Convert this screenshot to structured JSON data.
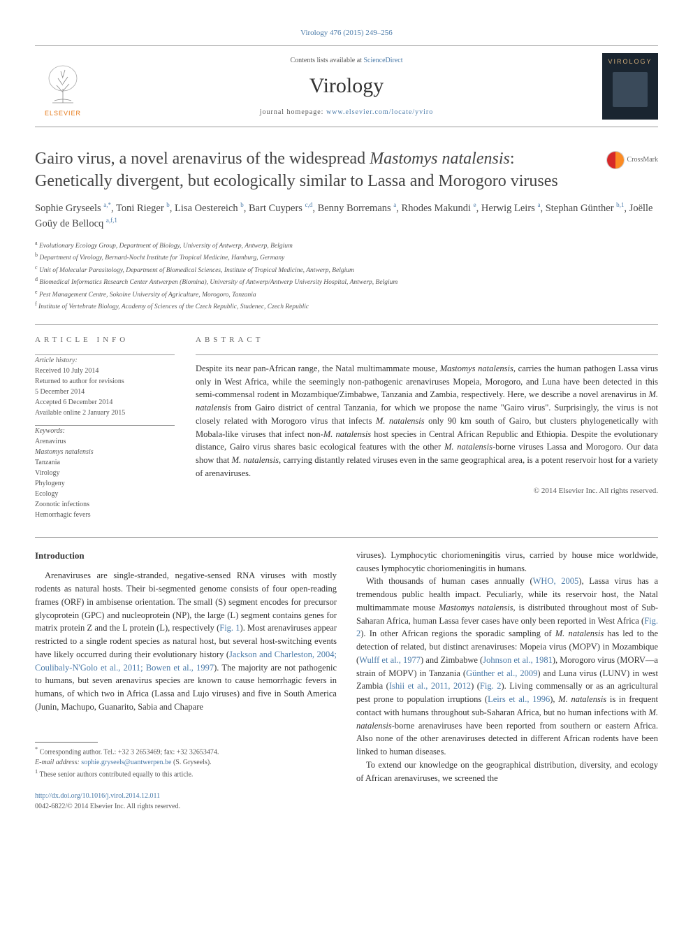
{
  "journal_ref": "Virology 476 (2015) 249–256",
  "header": {
    "contents_prefix": "Contents lists available at ",
    "contents_link": "ScienceDirect",
    "journal_name": "Virology",
    "homepage_prefix": "journal homepage: ",
    "homepage_link": "www.elsevier.com/locate/yviro",
    "elsevier_label": "ELSEVIER",
    "cover_label": "VIROLOGY"
  },
  "crossmark_label": "CrossMark",
  "title_parts": {
    "p1": "Gairo virus, a novel arenavirus of the widespread ",
    "em1": "Mastomys natalensis",
    "p2": ": Genetically divergent, but ecologically similar to Lassa and Morogoro viruses"
  },
  "authors_html": "Sophie Gryseels|a,*|, Toni Rieger|b|, Lisa Oestereich|b|, Bart Cuypers|c,d|, Benny Borremans|a|, Rhodes Makundi|e|, Herwig Leirs|a|, Stephan Günther|b,1|, Joëlle Goüy de Bellocq|a,f,1|",
  "affiliations": [
    {
      "sup": "a",
      "text": " Evolutionary Ecology Group, Department of Biology, University of Antwerp, Antwerp, Belgium"
    },
    {
      "sup": "b",
      "text": " Department of Virology, Bernard-Nocht Institute for Tropical Medicine, Hamburg, Germany"
    },
    {
      "sup": "c",
      "text": " Unit of Molecular Parasitology, Department of Biomedical Sciences, Institute of Tropical Medicine, Antwerp, Belgium"
    },
    {
      "sup": "d",
      "text": " Biomedical Informatics Research Center Antwerpen (Biomina), University of Antwerp/Antwerp University Hospital, Antwerp, Belgium"
    },
    {
      "sup": "e",
      "text": " Pest Management Centre, Sokoine University of Agriculture, Morogoro, Tanzania"
    },
    {
      "sup": "f",
      "text": " Institute of Vertebrate Biology, Academy of Sciences of the Czech Republic, Studenec, Czech Republic"
    }
  ],
  "info": {
    "heading": "ARTICLE INFO",
    "history_label": "Article history:",
    "history": [
      "Received 10 July 2014",
      "Returned to author for revisions",
      "5 December 2014",
      "Accepted 6 December 2014",
      "Available online 2 January 2015"
    ],
    "keywords_label": "Keywords:",
    "keywords": [
      "Arenavirus",
      "Mastomys natalensis",
      "Tanzania",
      "Virology",
      "Phylogeny",
      "Ecology",
      "Zoonotic infections",
      "Hemorrhagic fevers"
    ]
  },
  "abstract": {
    "heading": "ABSTRACT",
    "text_parts": [
      {
        "t": "Despite its near pan-African range, the Natal multimammate mouse, "
      },
      {
        "em": "Mastomys natalensis"
      },
      {
        "t": ", carries the human pathogen Lassa virus only in West Africa, while the seemingly non-pathogenic arenaviruses Mopeia, Morogoro, and Luna have been detected in this semi-commensal rodent in Mozambique/Zimbabwe, Tanzania and Zambia, respectively. Here, we describe a novel arenavirus in "
      },
      {
        "em": "M. natalensis"
      },
      {
        "t": " from Gairo district of central Tanzania, for which we propose the name \"Gairo virus\". Surprisingly, the virus is not closely related with Morogoro virus that infects "
      },
      {
        "em": "M. natalensis"
      },
      {
        "t": " only 90 km south of Gairo, but clusters phylogenetically with Mobala-like viruses that infect non-"
      },
      {
        "em": "M. natalensis"
      },
      {
        "t": " host species in Central African Republic and Ethiopia. Despite the evolutionary distance, Gairo virus shares basic ecological features with the other "
      },
      {
        "em": "M. natalensis"
      },
      {
        "t": "-borne viruses Lassa and Morogoro. Our data show that "
      },
      {
        "em": "M. natalensis"
      },
      {
        "t": ", carrying distantly related viruses even in the same geographical area, is a potent reservoir host for a variety of arenaviruses."
      }
    ],
    "copyright": "© 2014 Elsevier Inc. All rights reserved."
  },
  "intro": {
    "heading": "Introduction",
    "col1": [
      {
        "t": "Arenaviruses are single-stranded, negative-sensed RNA viruses with mostly rodents as natural hosts. Their bi-segmented genome consists of four open-reading frames (ORF) in ambisense orientation. The small (S) segment encodes for precursor glycoprotein (GPC) and nucleoprotein (NP), the large (L) segment contains genes for matrix protein Z and the L protein (L), respectively ("
      },
      {
        "a": "Fig. 1"
      },
      {
        "t": "). Most arenaviruses appear restricted to a single rodent species as natural host, but several host-switching events have likely occurred during their evolutionary history ("
      },
      {
        "a": "Jackson and Charleston, 2004; Coulibaly-N'Golo et al., 2011; Bowen et al., 1997"
      },
      {
        "t": "). The majority are not pathogenic to humans, but seven arenavirus species are known to cause hemorrhagic fevers in humans, of which two in Africa (Lassa and Lujo viruses) and five in South America (Junin, Machupo, Guanarito, Sabia and Chapare "
      }
    ],
    "col2_top": "viruses). Lymphocytic choriomeningitis virus, carried by house mice worldwide, causes lymphocytic choriomeningitis in humans.",
    "col2_p2": [
      {
        "t": "With thousands of human cases annually ("
      },
      {
        "a": "WHO, 2005"
      },
      {
        "t": "), Lassa virus has a tremendous public health impact. Peculiarly, while its reservoir host, the Natal multimammate mouse "
      },
      {
        "em": "Mastomys natalensis"
      },
      {
        "t": ", is distributed throughout most of Sub-Saharan Africa, human Lassa fever cases have only been reported in West Africa ("
      },
      {
        "a": "Fig. 2"
      },
      {
        "t": "). In other African regions the sporadic sampling of "
      },
      {
        "em": "M. natalensis"
      },
      {
        "t": " has led to the detection of related, but distinct arenaviruses: Mopeia virus (MOPV) in Mozambique ("
      },
      {
        "a": "Wulff et al., 1977"
      },
      {
        "t": ") and Zimbabwe ("
      },
      {
        "a": "Johnson et al., 1981"
      },
      {
        "t": "), Morogoro virus (MORV—a strain of MOPV) in Tanzania ("
      },
      {
        "a": "Günther et al., 2009"
      },
      {
        "t": ") and Luna virus (LUNV) in west Zambia ("
      },
      {
        "a": "Ishii et al., 2011, 2012"
      },
      {
        "t": ") ("
      },
      {
        "a": "Fig. 2"
      },
      {
        "t": "). Living commensally or as an agricultural pest prone to population irruptions ("
      },
      {
        "a": "Leirs et al., 1996"
      },
      {
        "t": "), "
      },
      {
        "em": "M. natalensis"
      },
      {
        "t": " is in frequent contact with humans throughout sub-Saharan Africa, but no human infections with "
      },
      {
        "em": "M. natalensis"
      },
      {
        "t": "-borne arenaviruses have been reported from southern or eastern Africa. Also none of the other arenaviruses detected in different African rodents have been linked to human diseases."
      }
    ],
    "col2_p3": "To extend our knowledge on the geographical distribution, diversity, and ecology of African arenaviruses, we screened the"
  },
  "footer": {
    "corr_symbol": "*",
    "corr_text": " Corresponding author. Tel.: +32 3 2653469; fax: +32 32653474.",
    "email_label": "E-mail address: ",
    "email": "sophie.gryseels@uantwerpen.be",
    "email_suffix": " (S. Gryseels).",
    "note1_sup": "1",
    "note1": " These senior authors contributed equally to this article.",
    "doi": "http://dx.doi.org/10.1016/j.virol.2014.12.011",
    "issn_line": "0042-6822/© 2014 Elsevier Inc. All rights reserved."
  },
  "colors": {
    "link": "#4a7aa8",
    "text": "#333333",
    "elsevier_orange": "#e67817",
    "crossmark_red": "#d62828",
    "crossmark_orange": "#fb8b24",
    "cover_bg": "#1a2530",
    "cover_title": "#d4af7a"
  }
}
